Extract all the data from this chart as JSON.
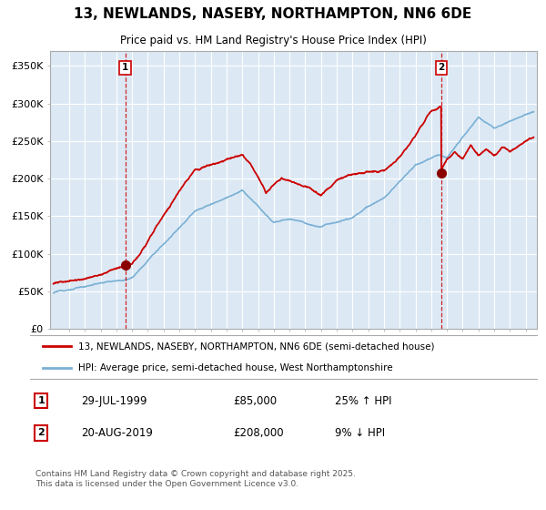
{
  "title": "13, NEWLANDS, NASEBY, NORTHAMPTON, NN6 6DE",
  "subtitle": "Price paid vs. HM Land Registry's House Price Index (HPI)",
  "ylim": [
    0,
    370000
  ],
  "yticks": [
    0,
    50000,
    100000,
    150000,
    200000,
    250000,
    300000,
    350000
  ],
  "ytick_labels": [
    "£0",
    "£50K",
    "£100K",
    "£150K",
    "£200K",
    "£250K",
    "£300K",
    "£350K"
  ],
  "bg_color": "#dce9f5",
  "red_color": "#cc0000",
  "blue_color": "#7ab0d4",
  "marker1_date": 1999.57,
  "marker1_price": 85000,
  "marker1_label": "29-JUL-1999",
  "marker1_value_label": "£85,000",
  "marker1_hpi_label": "25% ↑ HPI",
  "marker2_date": 2019.63,
  "marker2_price": 208000,
  "marker2_label": "20-AUG-2019",
  "marker2_value_label": "£208,000",
  "marker2_hpi_label": "9% ↓ HPI",
  "legend_line1": "13, NEWLANDS, NASEBY, NORTHAMPTON, NN6 6DE (semi-detached house)",
  "legend_line2": "HPI: Average price, semi-detached house, West Northamptonshire",
  "footer": "Contains HM Land Registry data © Crown copyright and database right 2025.\nThis data is licensed under the Open Government Licence v3.0.",
  "annotation1": "1",
  "annotation2": "2"
}
